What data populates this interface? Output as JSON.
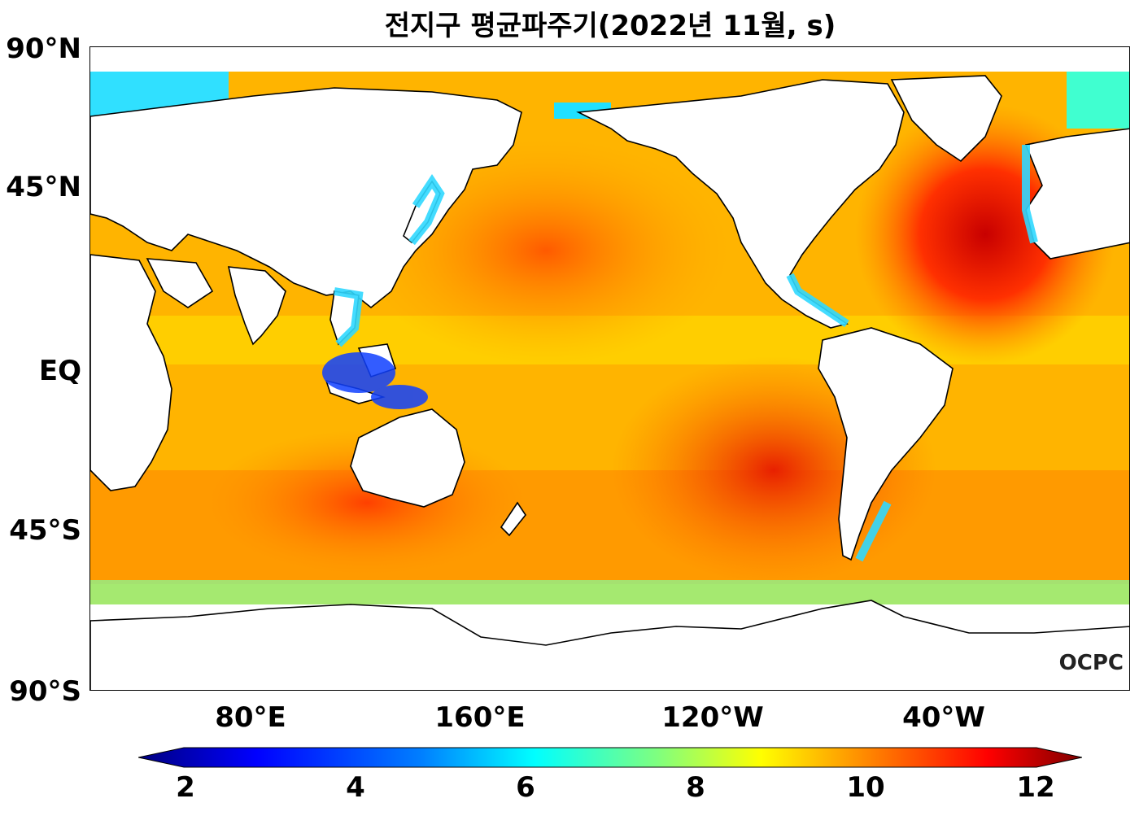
{
  "title": "전지구 평균파주기(2022년 11월, s)",
  "lat_labels": [
    "90°N",
    "45°N",
    "EQ",
    "45°S",
    "90°S"
  ],
  "lon_labels": [
    "80°E",
    "160°E",
    "120°W",
    "40°W"
  ],
  "colorbar": {
    "ticks": [
      "2",
      "4",
      "6",
      "8",
      "10",
      "12"
    ],
    "stops": [
      "#00007f",
      "#0000ff",
      "#007fff",
      "#00ffff",
      "#7fff7f",
      "#ffff00",
      "#ff7f00",
      "#ff0000",
      "#7f0000"
    ]
  },
  "logo_text": "OCPC",
  "colors": {
    "land": "#ffffff",
    "coast": "#000000"
  }
}
